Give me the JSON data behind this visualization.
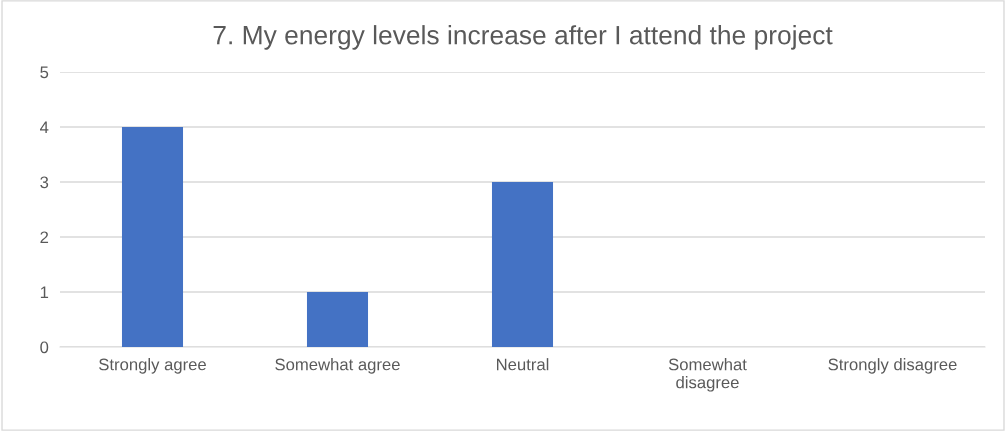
{
  "chart_data": {
    "type": "bar",
    "title": "7. My energy levels increase after I attend the project",
    "categories": [
      "Strongly agree",
      "Somewhat agree",
      "Neutral",
      "Somewhat\ndisagree",
      "Strongly disagree"
    ],
    "values": [
      4,
      1,
      3,
      0,
      0
    ],
    "color": "#4472c4",
    "ylim": [
      0,
      5
    ],
    "yticks": [
      0,
      1,
      2,
      3,
      4,
      5
    ],
    "grid": "y",
    "legend": false
  }
}
